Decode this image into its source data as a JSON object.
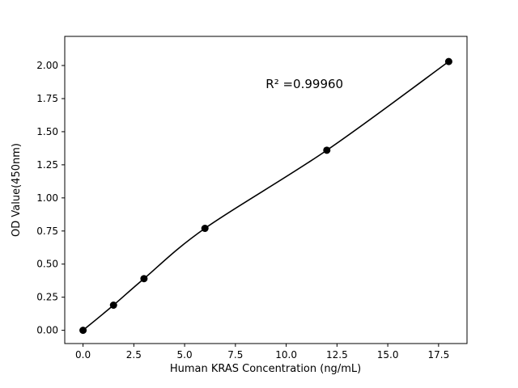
{
  "chart_data": {
    "type": "scatter",
    "title": "",
    "xlabel": "Human KRAS Concentration (ng/mL)",
    "ylabel": "OD Value(450nm)",
    "x": [
      0,
      1.5,
      3,
      6,
      12,
      18
    ],
    "y": [
      0.0,
      0.19,
      0.39,
      0.77,
      1.36,
      2.03
    ],
    "fit_line": true,
    "annotation": {
      "text": "R² =0.99960",
      "x": 10.9,
      "y": 1.86
    },
    "xlim": [
      -0.9,
      18.9
    ],
    "ylim": [
      -0.1,
      2.22
    ],
    "xticks": [
      0.0,
      2.5,
      5.0,
      7.5,
      10.0,
      12.5,
      15.0,
      17.5
    ],
    "xtick_labels": [
      "0.0",
      "2.5",
      "5.0",
      "7.5",
      "10.0",
      "12.5",
      "15.0",
      "17.5"
    ],
    "yticks": [
      0.0,
      0.25,
      0.5,
      0.75,
      1.0,
      1.25,
      1.5,
      1.75,
      2.0
    ],
    "ytick_labels": [
      "0.00",
      "0.25",
      "0.50",
      "0.75",
      "1.00",
      "1.25",
      "1.50",
      "1.75",
      "2.00"
    ],
    "grid": false,
    "legend": null,
    "marker_color": "#000000",
    "line_color": "#000000",
    "background_color": "#ffffff"
  }
}
